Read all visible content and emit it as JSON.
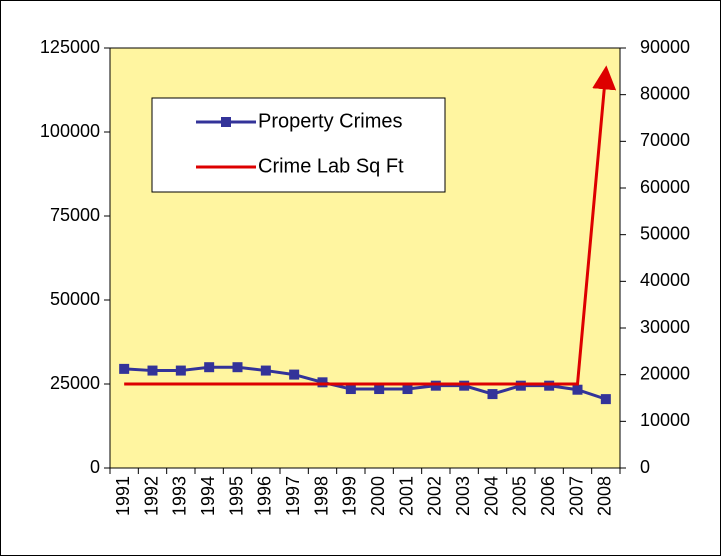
{
  "chart_data": {
    "type": "line",
    "categories": [
      "1991",
      "1992",
      "1993",
      "1994",
      "1995",
      "1996",
      "1997",
      "1998",
      "1999",
      "2000",
      "2001",
      "2002",
      "2003",
      "2004",
      "2005",
      "2006",
      "2007",
      "2008"
    ],
    "series": [
      {
        "name": "Property Crimes",
        "color": "#333399",
        "axis": "y",
        "marker": "square",
        "values": [
          29500,
          29000,
          29000,
          30000,
          30000,
          29000,
          27800,
          25500,
          23500,
          23500,
          23500,
          24500,
          24500,
          22000,
          24500,
          24500,
          23300,
          20500
        ]
      },
      {
        "name": "Crime Lab Sq Ft",
        "color": "#dd0000",
        "axis": "y2",
        "arrow": true,
        "values": [
          18000,
          18000,
          18000,
          18000,
          18000,
          18000,
          18000,
          18000,
          18000,
          18000,
          18000,
          18000,
          18000,
          18000,
          18000,
          18000,
          18000,
          85000
        ]
      }
    ],
    "ylim": [
      0,
      125000
    ],
    "yticks": [
      0,
      25000,
      50000,
      75000,
      100000,
      125000
    ],
    "y2lim": [
      0,
      90000
    ],
    "y2ticks": [
      0,
      10000,
      20000,
      30000,
      40000,
      50000,
      60000,
      70000,
      80000,
      90000
    ],
    "plot_background": "#fff5a0"
  }
}
